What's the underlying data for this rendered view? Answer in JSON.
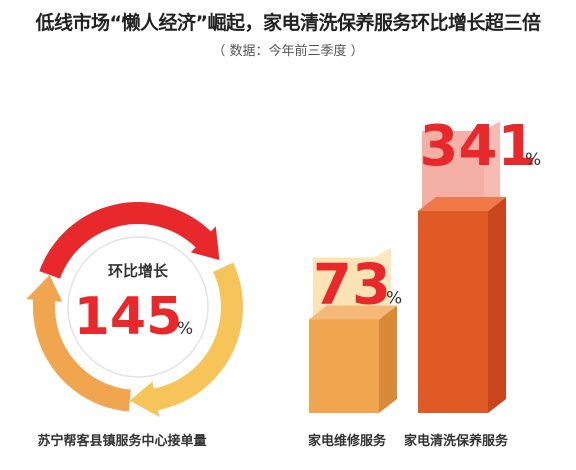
{
  "title": "低线市场“懒人经济”崛起，家电清洗保养服务环比增长超三倍",
  "subtitle": "（ 数据：今年前三季度 ）",
  "colors": {
    "red": "#e8282b",
    "dark_orange": "#e05a25",
    "orange": "#f0a54e",
    "yellow": "#f7c45a",
    "light_yellow": "#fbe3b5",
    "pink": "#f5b0a6"
  },
  "chart_data": [
    {
      "type": "pie",
      "badge_label": "环比增长",
      "value": 145,
      "value_text": "145",
      "unit": "%",
      "xlabel": "苏宁帮客县镇服务中心接单量"
    },
    {
      "type": "bar",
      "categories": [
        "家电维修服务",
        "家电清洗保养服务"
      ],
      "values": [
        73,
        341
      ],
      "value_texts": [
        "73",
        "341"
      ],
      "unit": "%"
    }
  ]
}
